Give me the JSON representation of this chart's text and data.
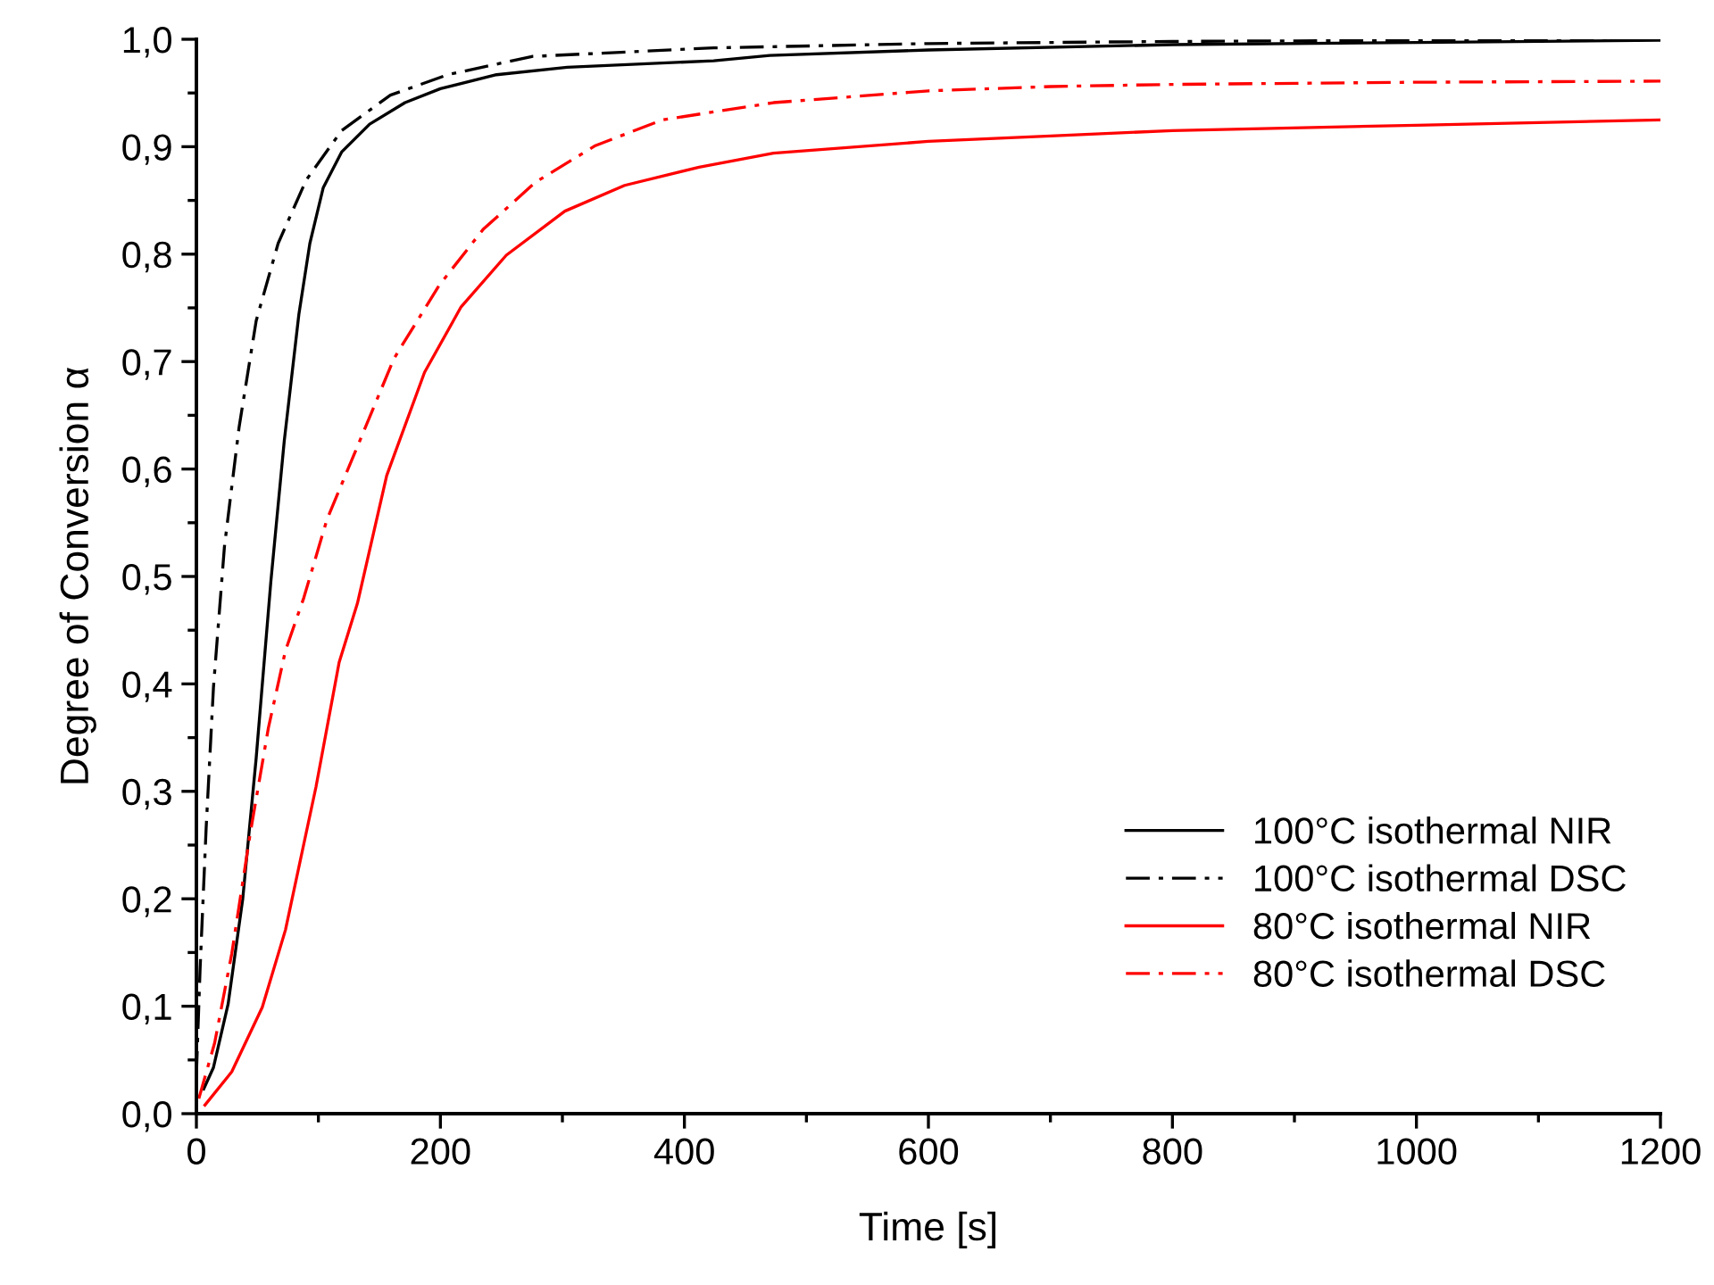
{
  "chart_data": {
    "type": "line",
    "xlabel": "Time [s]",
    "ylabel": "Degree of Conversion α",
    "xlim": [
      0,
      1200
    ],
    "xticks": [
      0,
      200,
      400,
      600,
      800,
      1000,
      1200
    ],
    "ylim": [
      0,
      1.0
    ],
    "yticks": [
      {
        "value": 0,
        "label": "0,0"
      },
      {
        "value": 0.1,
        "label": "0,1"
      },
      {
        "value": 0.2,
        "label": "0,2"
      },
      {
        "value": 0.3,
        "label": "0,3"
      },
      {
        "value": 0.4,
        "label": "0,4"
      },
      {
        "value": 0.5,
        "label": "0,5"
      },
      {
        "value": 0.6,
        "label": "0,6"
      },
      {
        "value": 0.7,
        "label": "0,7"
      },
      {
        "value": 0.8,
        "label": "0,8"
      },
      {
        "value": 0.9,
        "label": "0,9"
      },
      {
        "value": 1.0,
        "label": "1,0"
      }
    ],
    "grid": false,
    "legend": "bottom right",
    "marker": "none",
    "series": [
      {
        "name": "100°C isothermal NIR",
        "color": "#000000",
        "line_style": "solid",
        "x": [
          6,
          14,
          26,
          38,
          49,
          61,
          72,
          84,
          93,
          104,
          119,
          142,
          171,
          200,
          246,
          304,
          424,
          470,
          600,
          800,
          1000,
          1200
        ],
        "values": [
          0.023,
          0.043,
          0.102,
          0.2,
          0.331,
          0.495,
          0.626,
          0.744,
          0.81,
          0.862,
          0.895,
          0.921,
          0.941,
          0.954,
          0.967,
          0.974,
          0.98,
          0.985,
          0.99,
          0.995,
          0.997,
          0.999
        ]
      },
      {
        "name": "100°C isothermal DSC",
        "color": "#000000",
        "line_style": "dashdot",
        "x": [
          0,
          3,
          8,
          14,
          23,
          35,
          49,
          67,
          90,
          119,
          159,
          206,
          275,
          424,
          600,
          800,
          1200
        ],
        "values": [
          0.036,
          0.134,
          0.266,
          0.397,
          0.528,
          0.639,
          0.738,
          0.81,
          0.869,
          0.915,
          0.948,
          0.967,
          0.984,
          0.992,
          0.996,
          0.998,
          1.0
        ]
      },
      {
        "name": "80°C isothermal NIR",
        "color": "#ff0000",
        "line_style": "solid",
        "x": [
          7,
          29,
          54,
          73,
          98,
          117,
          132,
          156,
          187,
          217,
          254,
          302,
          351,
          412,
          473,
          600,
          700,
          800,
          1000,
          1200
        ],
        "values": [
          0.008,
          0.039,
          0.099,
          0.171,
          0.304,
          0.42,
          0.475,
          0.594,
          0.69,
          0.751,
          0.799,
          0.84,
          0.864,
          0.881,
          0.894,
          0.905,
          0.91,
          0.915,
          0.92,
          0.925
        ]
      },
      {
        "name": "80°C isothermal DSC",
        "color": "#ff0000",
        "line_style": "dashdot",
        "x": [
          2,
          15,
          29,
          44,
          59,
          73,
          88,
          107,
          132,
          162,
          199,
          235,
          278,
          327,
          382,
          473,
          600,
          700,
          800,
          1000,
          1200
        ],
        "values": [
          0.014,
          0.066,
          0.149,
          0.26,
          0.359,
          0.431,
          0.48,
          0.553,
          0.621,
          0.703,
          0.771,
          0.823,
          0.867,
          0.901,
          0.925,
          0.941,
          0.952,
          0.956,
          0.958,
          0.96,
          0.961
        ]
      }
    ]
  }
}
